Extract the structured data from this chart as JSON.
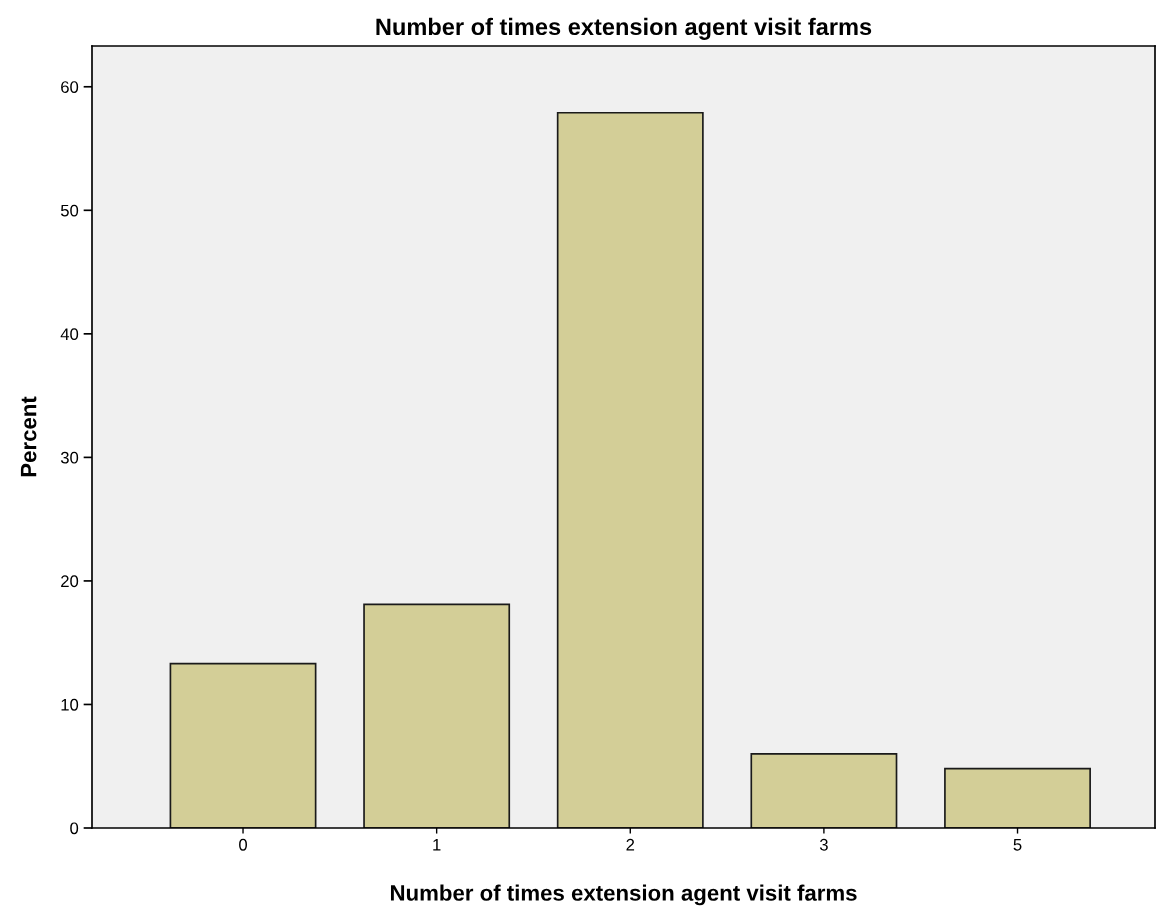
{
  "chart_data": {
    "type": "bar",
    "title": "Number of times extension agent visit farms",
    "xlabel": "Number of times extension agent visit farms",
    "ylabel": "Percent",
    "categories": [
      "0",
      "1",
      "2",
      "3",
      "5"
    ],
    "values": [
      13.3,
      18.1,
      57.9,
      6.0,
      4.8
    ],
    "color": "#d3ce97",
    "ylim": [
      0,
      63.3
    ],
    "yticks": [
      0,
      10,
      20,
      30,
      40,
      50,
      60
    ],
    "grid": false,
    "legend": false
  }
}
